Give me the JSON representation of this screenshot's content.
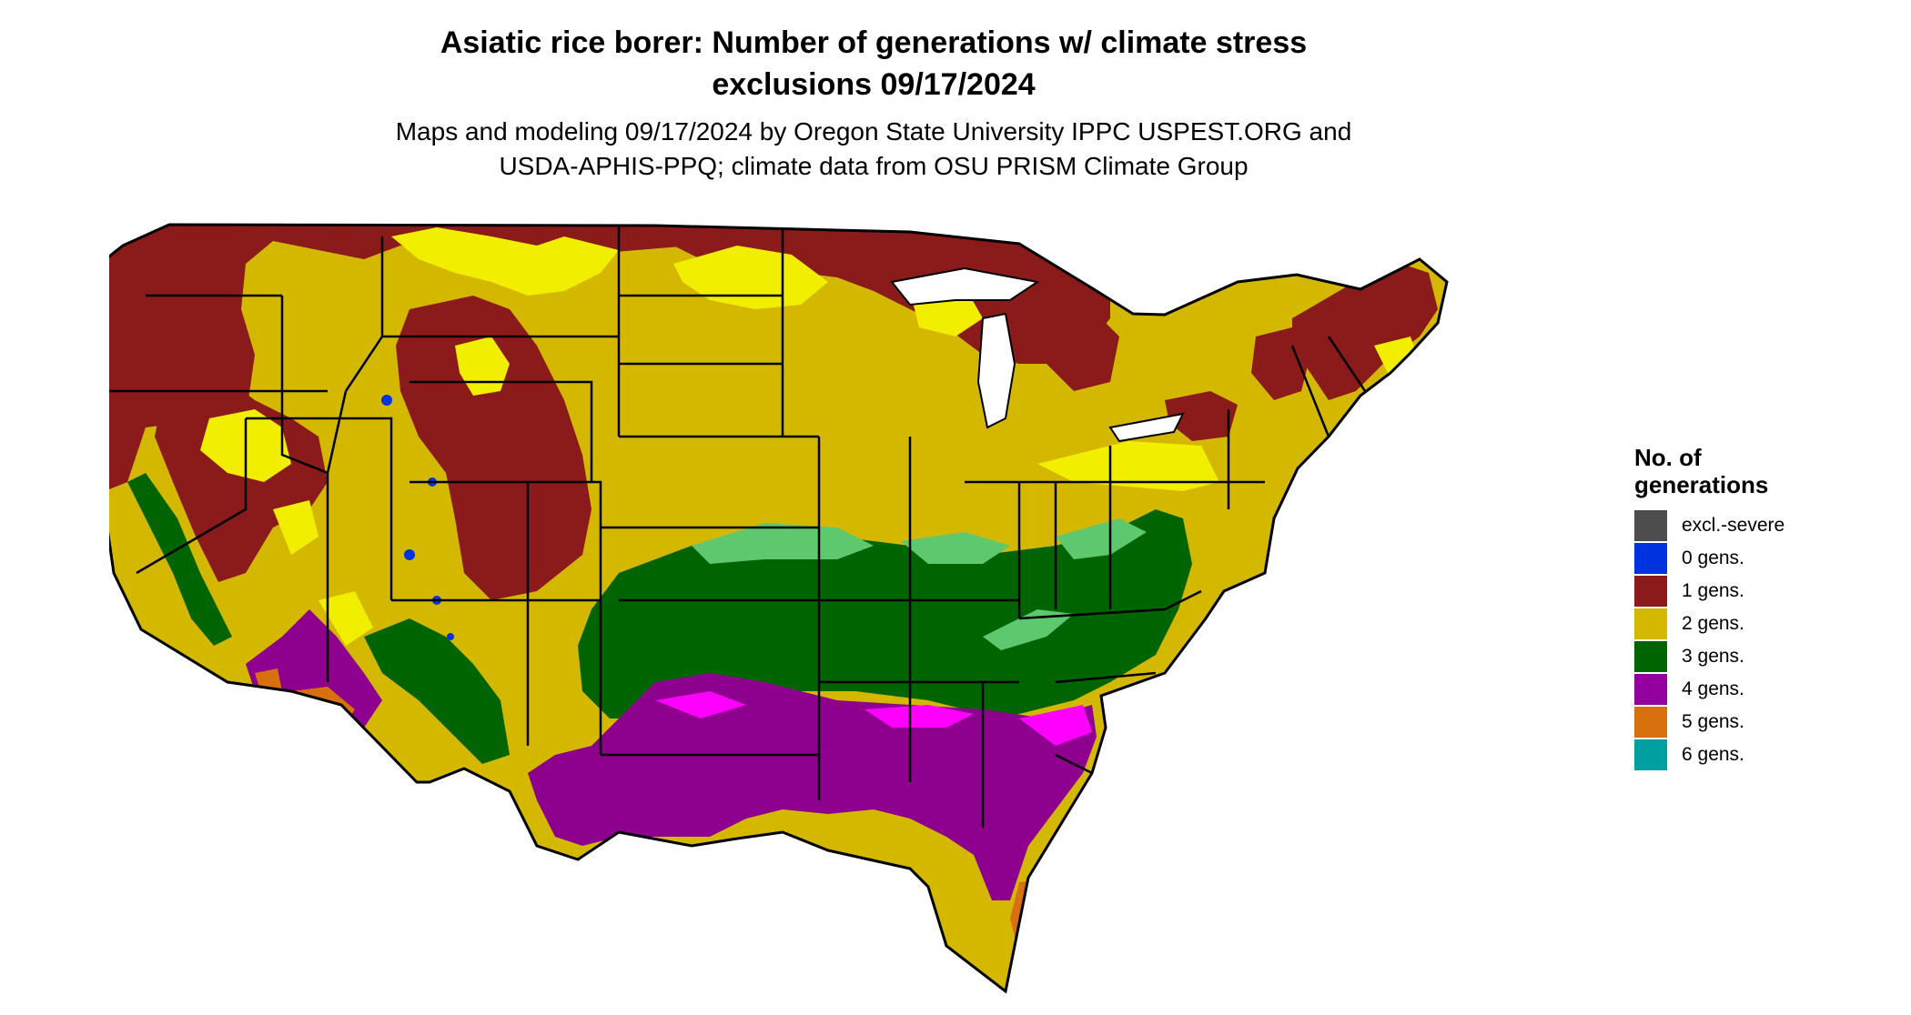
{
  "title": {
    "line1": "Asiatic rice borer: Number of generations w/ climate stress",
    "line2": "exclusions 09/17/2024"
  },
  "subtitle": {
    "line1": "Maps and modeling 09/17/2024 by Oregon State University IPPC USPEST.ORG and",
    "line2": "USDA-APHIS-PPQ; climate data from OSU PRISM Climate Group"
  },
  "legend": {
    "title_line1": "No. of",
    "title_line2": "generations",
    "items": [
      {
        "label": "excl.-severe",
        "color": "#4d4d4d"
      },
      {
        "label": "0 gens.",
        "color": "#0033e0"
      },
      {
        "label": "1 gens.",
        "color": "#8b1a1a"
      },
      {
        "label": "2 gens.",
        "color": "#d4b800"
      },
      {
        "label": "3 gens.",
        "color": "#006400"
      },
      {
        "label": "4 gens.",
        "color": "#9400a0"
      },
      {
        "label": "5 gens.",
        "color": "#d87010"
      },
      {
        "label": "6 gens.",
        "color": "#00a0a0"
      }
    ]
  },
  "map_colors": {
    "gen1": "#8b1a1a",
    "gen2": "#d4b800",
    "gen2_light": "#f2ee00",
    "gen3": "#006400",
    "gen3_light": "#5ec86e",
    "gen4": "#8e008e",
    "gen4_light": "#ff00ff",
    "gen5": "#d87010",
    "gen0": "#0033e0",
    "gen6": "#00a0a0",
    "border": "#000000"
  }
}
